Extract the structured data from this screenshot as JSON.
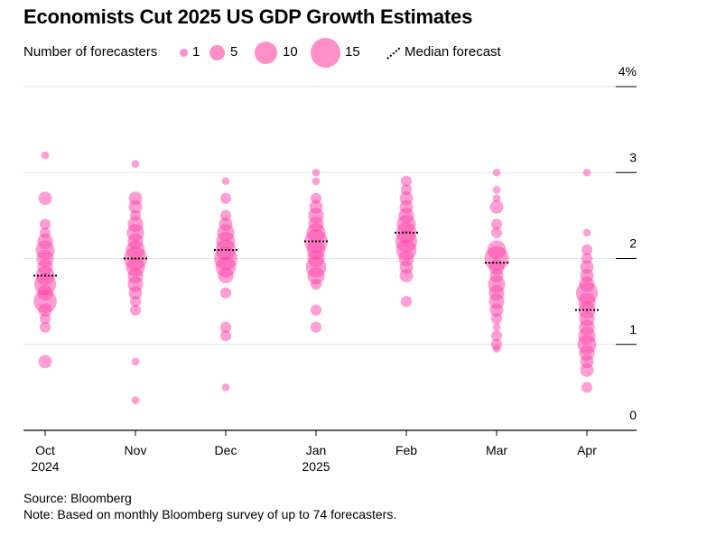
{
  "header": {
    "title": "Economists Cut 2025 US GDP Growth Estimates"
  },
  "legend": {
    "size_label": "Number of forecasters",
    "sizes": [
      "1",
      "5",
      "10",
      "15"
    ],
    "median_label": "Median forecast"
  },
  "footer": {
    "source": "Source: Bloomberg",
    "note": "Note: Based on monthly Bloomberg survey of up to 74 forecasters."
  },
  "colors": {
    "dot": "#ff3fa8",
    "median": "#000000",
    "grid": "#e6e6e6",
    "axis": "#000000"
  },
  "chart_data": {
    "type": "scatter",
    "title": "Economists Cut 2025 US GDP Growth Estimates",
    "categories": [
      "Oct",
      "Nov",
      "Dec",
      "Jan",
      "Feb",
      "Mar",
      "Apr"
    ],
    "category_sublabels": [
      "2024",
      "",
      "",
      "2025",
      "",
      "",
      ""
    ],
    "ylim": [
      0,
      4
    ],
    "yticks": [
      {
        "value": 0,
        "label": "0"
      },
      {
        "value": 1,
        "label": "1"
      },
      {
        "value": 2,
        "label": "2"
      },
      {
        "value": 3,
        "label": "3"
      },
      {
        "value": 4,
        "label": "4%"
      }
    ],
    "size_legend": [
      1,
      5,
      10,
      15
    ],
    "medians": [
      1.8,
      2.0,
      2.1,
      2.2,
      2.3,
      1.95,
      1.4
    ],
    "points": [
      [
        [
          3.2,
          1
        ],
        [
          2.7,
          3
        ],
        [
          2.4,
          2
        ],
        [
          2.3,
          2
        ],
        [
          2.2,
          4
        ],
        [
          2.1,
          6
        ],
        [
          2.0,
          5
        ],
        [
          1.9,
          4
        ],
        [
          1.8,
          6
        ],
        [
          1.7,
          8
        ],
        [
          1.6,
          4
        ],
        [
          1.5,
          9
        ],
        [
          1.4,
          3
        ],
        [
          1.3,
          2
        ],
        [
          1.2,
          2
        ],
        [
          0.8,
          3
        ]
      ],
      [
        [
          3.1,
          1
        ],
        [
          2.7,
          3
        ],
        [
          2.6,
          3
        ],
        [
          2.5,
          2
        ],
        [
          2.4,
          4
        ],
        [
          2.3,
          5
        ],
        [
          2.2,
          4
        ],
        [
          2.1,
          6
        ],
        [
          2.0,
          9
        ],
        [
          1.9,
          6
        ],
        [
          1.8,
          4
        ],
        [
          1.7,
          4
        ],
        [
          1.6,
          3
        ],
        [
          1.5,
          2
        ],
        [
          1.4,
          2
        ],
        [
          0.8,
          1
        ],
        [
          0.35,
          1
        ]
      ],
      [
        [
          2.9,
          1
        ],
        [
          2.7,
          2
        ],
        [
          2.5,
          2
        ],
        [
          2.4,
          3
        ],
        [
          2.3,
          5
        ],
        [
          2.2,
          6
        ],
        [
          2.1,
          7
        ],
        [
          2.0,
          9
        ],
        [
          1.9,
          7
        ],
        [
          1.8,
          4
        ],
        [
          1.6,
          2
        ],
        [
          1.2,
          2
        ],
        [
          1.1,
          2
        ],
        [
          0.5,
          1
        ]
      ],
      [
        [
          3.0,
          1
        ],
        [
          2.9,
          1
        ],
        [
          2.7,
          2
        ],
        [
          2.6,
          3
        ],
        [
          2.5,
          4
        ],
        [
          2.4,
          4
        ],
        [
          2.3,
          6
        ],
        [
          2.2,
          9
        ],
        [
          2.1,
          6
        ],
        [
          2.0,
          5
        ],
        [
          1.9,
          7
        ],
        [
          1.8,
          5
        ],
        [
          1.7,
          2
        ],
        [
          1.4,
          2
        ],
        [
          1.2,
          2
        ]
      ],
      [
        [
          2.9,
          2
        ],
        [
          2.8,
          2
        ],
        [
          2.7,
          3
        ],
        [
          2.6,
          3
        ],
        [
          2.5,
          4
        ],
        [
          2.4,
          6
        ],
        [
          2.3,
          7
        ],
        [
          2.2,
          8
        ],
        [
          2.1,
          7
        ],
        [
          2.0,
          4
        ],
        [
          1.9,
          3
        ],
        [
          1.8,
          3
        ],
        [
          1.5,
          2
        ]
      ],
      [
        [
          3.0,
          1
        ],
        [
          2.8,
          1
        ],
        [
          2.7,
          1
        ],
        [
          2.6,
          3
        ],
        [
          2.4,
          2
        ],
        [
          2.3,
          2
        ],
        [
          2.1,
          6
        ],
        [
          2.0,
          10
        ],
        [
          1.9,
          4
        ],
        [
          1.8,
          3
        ],
        [
          1.7,
          5
        ],
        [
          1.6,
          4
        ],
        [
          1.5,
          4
        ],
        [
          1.4,
          3
        ],
        [
          1.3,
          2
        ],
        [
          1.2,
          1
        ],
        [
          1.1,
          2
        ],
        [
          1.0,
          2
        ],
        [
          0.95,
          1
        ]
      ],
      [
        [
          3.0,
          1
        ],
        [
          2.3,
          1
        ],
        [
          2.1,
          2
        ],
        [
          2.0,
          2
        ],
        [
          1.9,
          3
        ],
        [
          1.8,
          3
        ],
        [
          1.7,
          4
        ],
        [
          1.6,
          8
        ],
        [
          1.5,
          5
        ],
        [
          1.4,
          5
        ],
        [
          1.3,
          4
        ],
        [
          1.2,
          4
        ],
        [
          1.1,
          5
        ],
        [
          1.0,
          6
        ],
        [
          0.9,
          4
        ],
        [
          0.8,
          3
        ],
        [
          0.7,
          3
        ],
        [
          0.5,
          2
        ]
      ]
    ]
  }
}
